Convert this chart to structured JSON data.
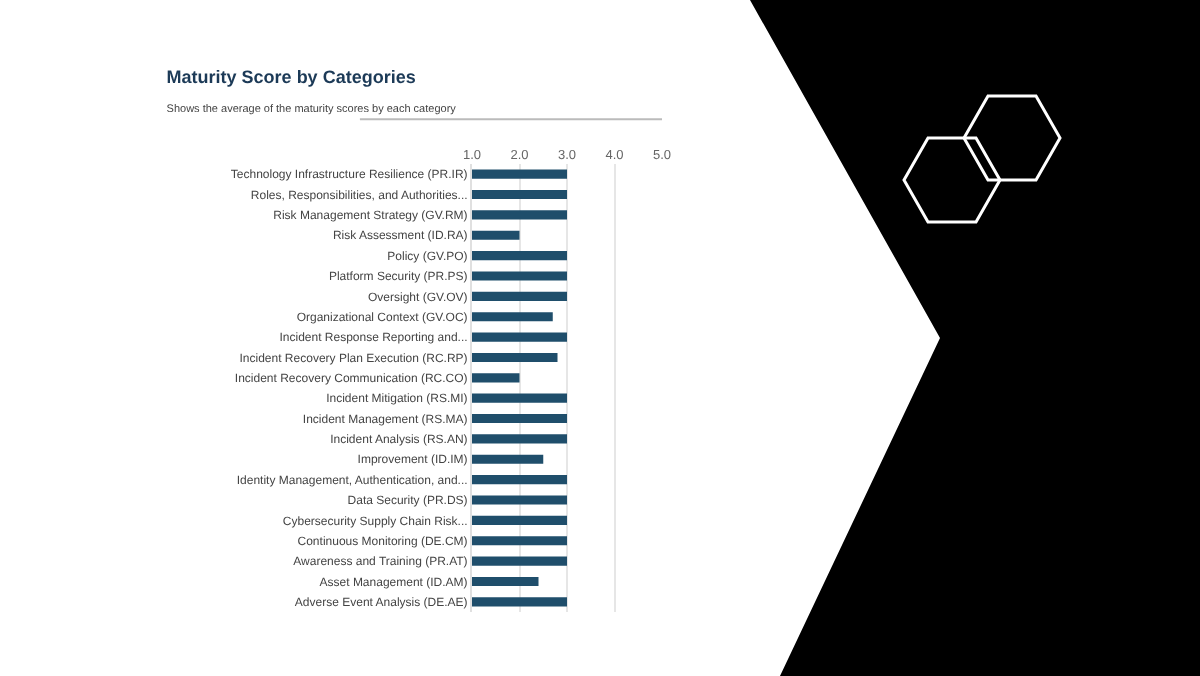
{
  "chart_data": {
    "type": "bar",
    "orientation": "horizontal",
    "title": "Maturity Score by Categories",
    "subtitle": "Shows the average of the maturity scores by each category",
    "categories": [
      "Technology Infrastructure Resilience (PR.IR)",
      "Roles, Responsibilities, and Authorities...",
      "Risk Management Strategy (GV.RM)",
      "Risk Assessment (ID.RA)",
      "Policy (GV.PO)",
      "Platform Security (PR.PS)",
      "Oversight (GV.OV)",
      "Organizational Context (GV.OC)",
      "Incident Response Reporting and...",
      "Incident Recovery Plan Execution (RC.RP)",
      "Incident Recovery Communication (RC.CO)",
      "Incident Mitigation (RS.MI)",
      "Incident Management (RS.MA)",
      "Incident Analysis (RS.AN)",
      "Improvement (ID.IM)",
      "Identity Management, Authentication, and...",
      "Data Security (PR.DS)",
      "Cybersecurity Supply Chain Risk...",
      "Continuous Monitoring (DE.CM)",
      "Awareness and Training (PR.AT)",
      "Asset Management (ID.AM)",
      "Adverse Event Analysis (DE.AE)"
    ],
    "values": [
      3,
      3,
      3,
      2,
      3,
      3,
      3,
      2.7,
      3,
      2.8,
      2,
      3,
      3,
      3,
      2.5,
      3,
      3,
      3,
      3,
      3,
      2.4,
      3
    ],
    "color": "#1f4e6b",
    "xlim": [
      1,
      5
    ],
    "xticks": [
      {
        "value": 1,
        "label": "1.0"
      },
      {
        "value": 2,
        "label": "2.0"
      },
      {
        "value": 3,
        "label": "3.0"
      },
      {
        "value": 4,
        "label": "4.0"
      },
      {
        "value": 5,
        "label": "5.0"
      }
    ],
    "grid": "x"
  }
}
